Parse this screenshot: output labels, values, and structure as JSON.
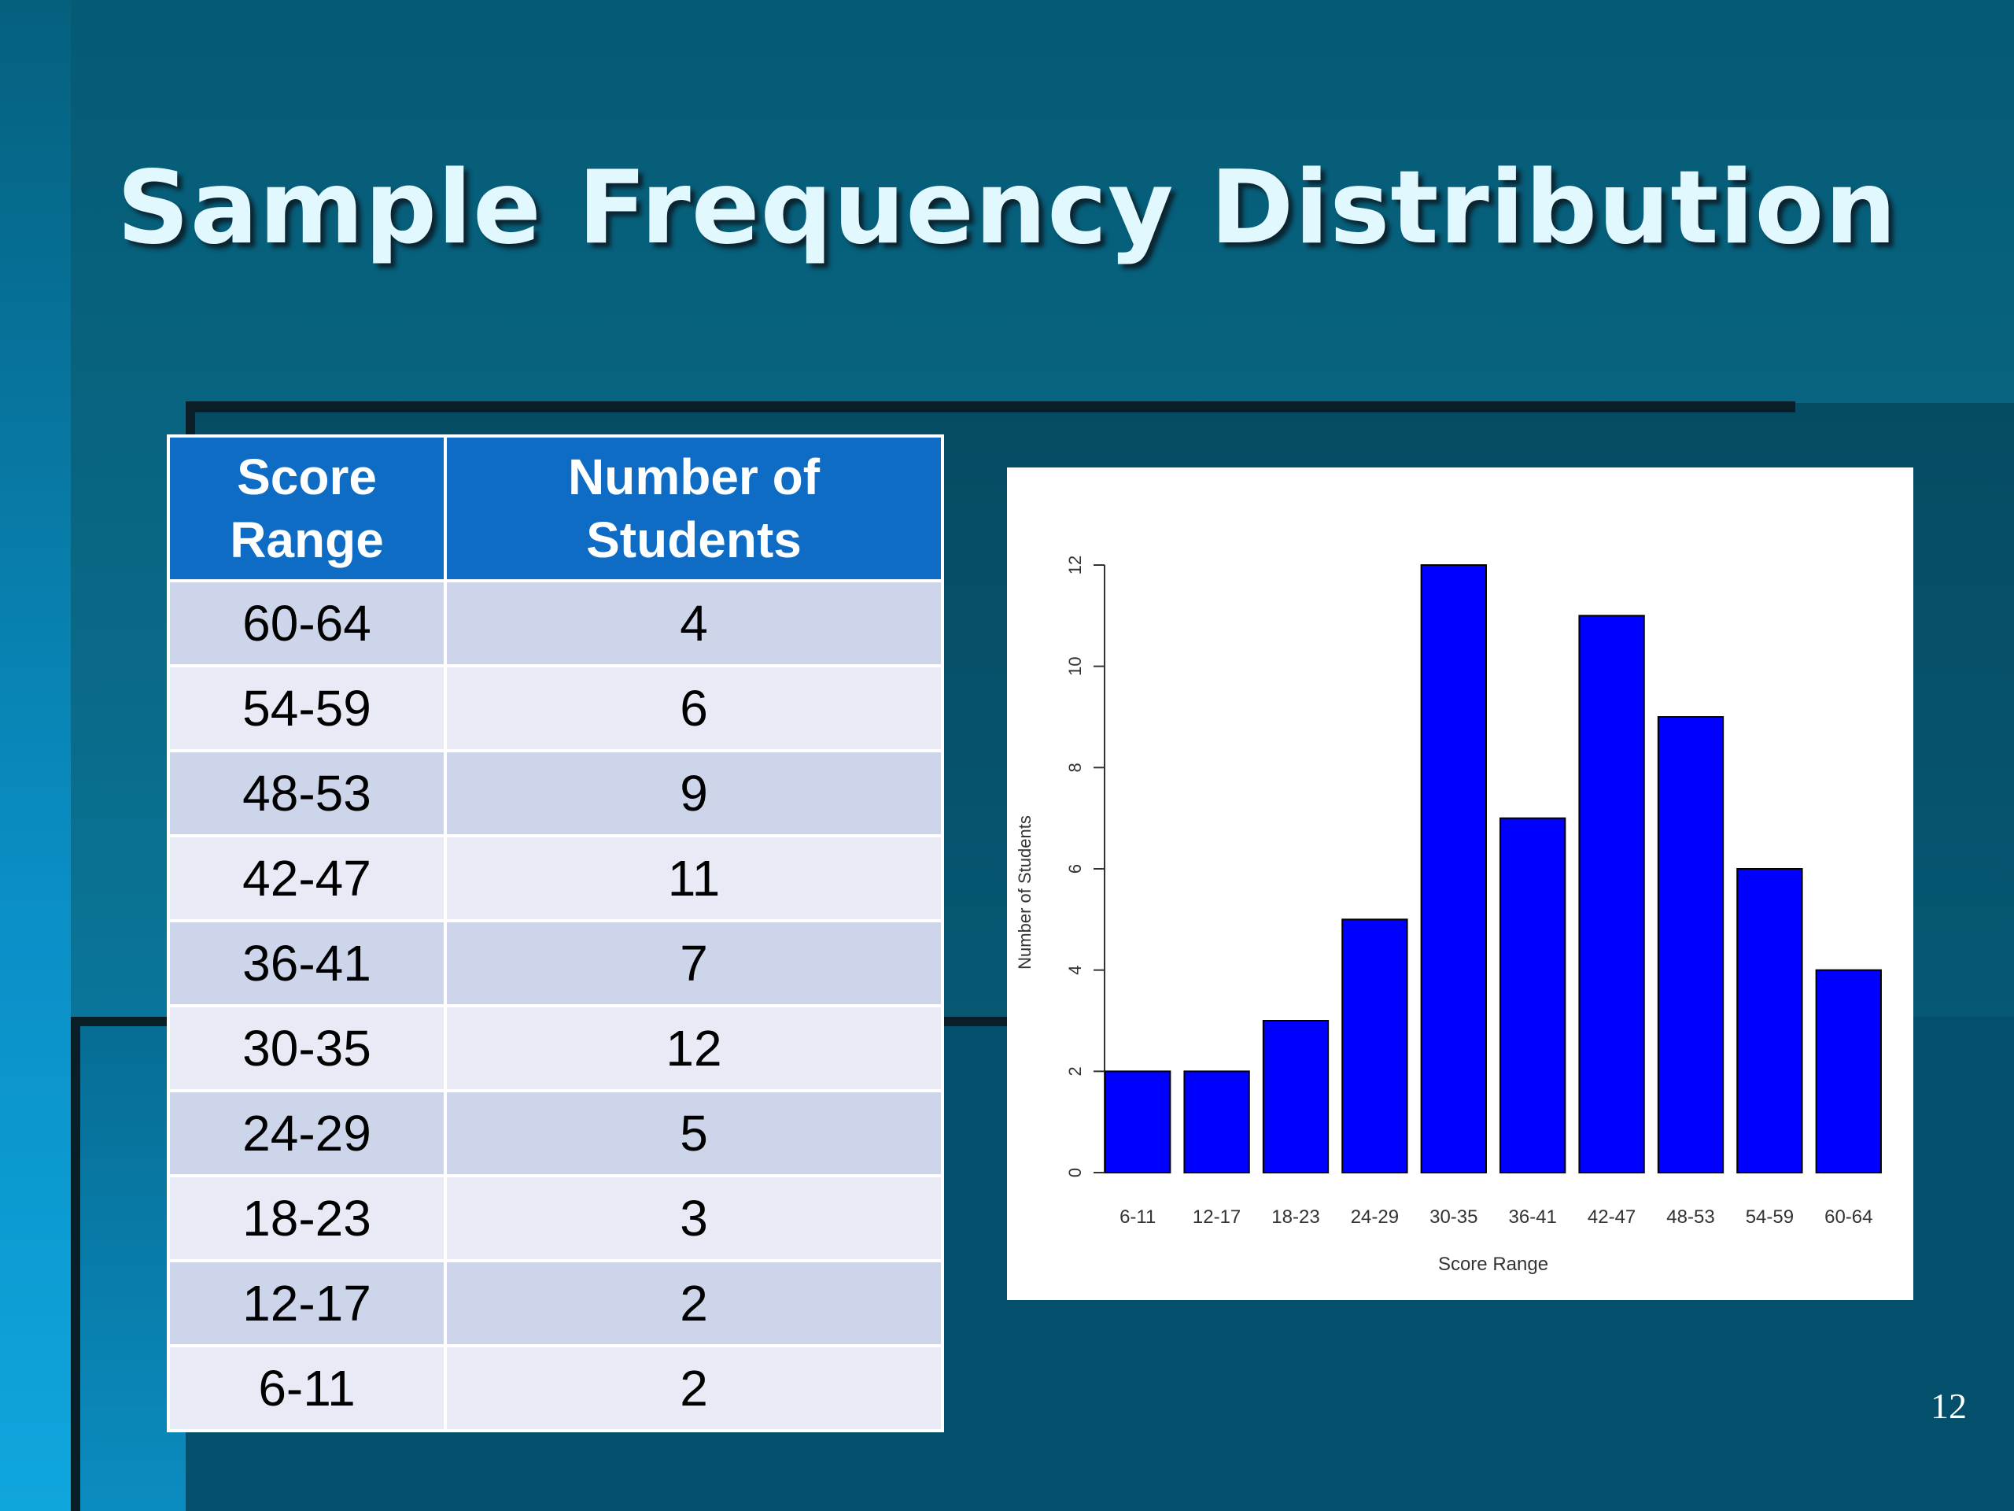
{
  "slide": {
    "title": "Sample Frequency Distribution",
    "page_number": "12"
  },
  "table": {
    "headers": [
      "Score Range",
      "Number of Students"
    ],
    "header_lines": [
      [
        "Score",
        "Range"
      ],
      [
        "Number of",
        "Students"
      ]
    ],
    "rows": [
      [
        "60-64",
        "4"
      ],
      [
        "54-59",
        "6"
      ],
      [
        "48-53",
        "9"
      ],
      [
        "42-47",
        "11"
      ],
      [
        "36-41",
        "7"
      ],
      [
        "30-35",
        "12"
      ],
      [
        "24-29",
        "5"
      ],
      [
        "18-23",
        "3"
      ],
      [
        "12-17",
        "2"
      ],
      [
        "6-11",
        "2"
      ]
    ]
  },
  "chart_data": {
    "type": "bar",
    "categories": [
      "6-11",
      "12-17",
      "18-23",
      "24-29",
      "30-35",
      "36-41",
      "42-47",
      "48-53",
      "54-59",
      "60-64"
    ],
    "values": [
      2,
      2,
      3,
      5,
      12,
      7,
      11,
      9,
      6,
      4
    ],
    "title": "",
    "xlabel": "Score Range",
    "ylabel": "Number of Students",
    "ylim": [
      0,
      12
    ],
    "yticks": [
      0,
      2,
      4,
      6,
      8,
      10,
      12
    ],
    "grid": false,
    "legend": "none",
    "bar_color": "#0000ff",
    "bar_edge_color": "#000000"
  },
  "colors": {
    "header_bg": "#0f6cc5",
    "row_odd_bg": "#cdd5ea",
    "row_even_bg": "#e8ebf6",
    "title_color": "#e2f8ff"
  }
}
